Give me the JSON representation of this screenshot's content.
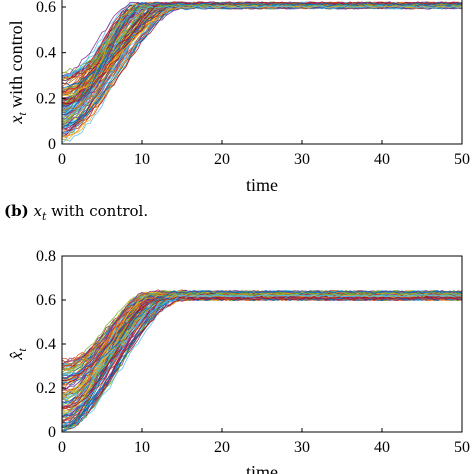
{
  "caption_b": {
    "label": "(b)",
    "math": "x",
    "sub": "t",
    "text": " with control."
  },
  "chart_data": [
    {
      "type": "line",
      "description_hint": "many stochastic trajectories (ensemble) rising to a plateau",
      "x_range": [
        0,
        50
      ],
      "y_range": [
        0,
        0.6
      ],
      "xticks": [
        "0",
        "10",
        "20",
        "30",
        "40",
        "50"
      ],
      "yticks": [
        "0",
        "0.2",
        "0.4",
        "0.6"
      ],
      "xlabel": "time",
      "ylabel": "x_t with control",
      "ylabel_math": "x",
      "ylabel_sub": "t",
      "ylabel_text": " with control",
      "trajectories": {
        "count": 120,
        "start_range": [
          0.0,
          0.32
        ],
        "rise_end_range": [
          9,
          16
        ],
        "plateau_mean": 0.605,
        "plateau_spread": [
          0.59,
          0.625
        ]
      }
    },
    {
      "type": "line",
      "x_range": [
        0,
        50
      ],
      "y_range": [
        0,
        0.8
      ],
      "xticks": [
        "0",
        "10",
        "20",
        "30",
        "40",
        "50"
      ],
      "yticks": [
        "0",
        "0.2",
        "0.4",
        "0.6",
        "0.8"
      ],
      "xlabel": "time",
      "ylabel": "x̂_t",
      "ylabel_math": "x̂",
      "ylabel_sub": "t",
      "trajectories": {
        "count": 120,
        "start_range": [
          0.0,
          0.33
        ],
        "rise_end_range": [
          10,
          16
        ],
        "plateau_mean": 0.62,
        "plateau_spread": [
          0.59,
          0.65
        ]
      }
    }
  ],
  "colors": {
    "series": [
      "#0072BD",
      "#D95319",
      "#EDB120",
      "#7E2F8E",
      "#77AC30",
      "#4DBEEE",
      "#A2142F"
    ]
  }
}
